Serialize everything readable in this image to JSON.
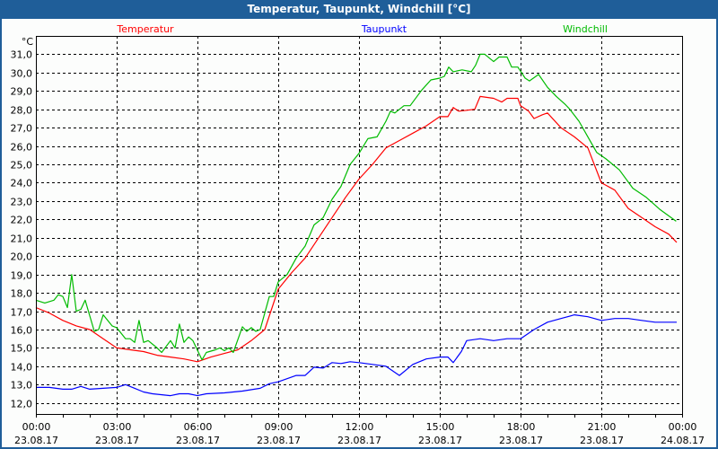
{
  "window": {
    "title": "Temperatur, Taupunkt, Windchill [°C]"
  },
  "chart_data": {
    "type": "line",
    "title": "Temperatur, Taupunkt, Windchill [°C]",
    "ylabel": "°C",
    "xlabel": "",
    "xlim": [
      0,
      24
    ],
    "ylim": [
      11.4,
      32.0
    ],
    "grid": true,
    "legend_position": "top",
    "yticks": [
      12,
      13,
      14,
      15,
      16,
      17,
      18,
      19,
      20,
      21,
      22,
      23,
      24,
      25,
      26,
      27,
      28,
      29,
      30,
      31
    ],
    "ytick_labels": [
      "12,0",
      "13,0",
      "14,0",
      "15,0",
      "16,0",
      "17,0",
      "18,0",
      "19,0",
      "20,0",
      "21,0",
      "22,0",
      "23,0",
      "24,0",
      "25,0",
      "26,0",
      "27,0",
      "28,0",
      "29,0",
      "30,0",
      "31,0"
    ],
    "xticks": [
      {
        "hour": 0,
        "time": "00:00",
        "date": "23.08.17"
      },
      {
        "hour": 3,
        "time": "03:00",
        "date": "23.08.17"
      },
      {
        "hour": 6,
        "time": "06:00",
        "date": "23.08.17"
      },
      {
        "hour": 9,
        "time": "09:00",
        "date": "23.08.17"
      },
      {
        "hour": 12,
        "time": "12:00",
        "date": "23.08.17"
      },
      {
        "hour": 15,
        "time": "15:00",
        "date": "23.08.17"
      },
      {
        "hour": 18,
        "time": "18:00",
        "date": "23.08.17"
      },
      {
        "hour": 21,
        "time": "21:00",
        "date": "23.08.17"
      },
      {
        "hour": 24,
        "time": "00:00",
        "date": "24.08.17"
      }
    ],
    "series": [
      {
        "name": "Temperatur",
        "color": "#ff0000",
        "points": [
          [
            0,
            17.2
          ],
          [
            0.5,
            16.9
          ],
          [
            1,
            16.5
          ],
          [
            1.5,
            16.2
          ],
          [
            2,
            16.0
          ],
          [
            2.5,
            15.5
          ],
          [
            3,
            15.0
          ],
          [
            3.5,
            14.9
          ],
          [
            4,
            14.8
          ],
          [
            4.5,
            14.6
          ],
          [
            5,
            14.5
          ],
          [
            5.5,
            14.4
          ],
          [
            6,
            14.25
          ],
          [
            6.5,
            14.5
          ],
          [
            7,
            14.7
          ],
          [
            7.5,
            14.9
          ],
          [
            8,
            15.4
          ],
          [
            8.5,
            16.0
          ],
          [
            9,
            18.2
          ],
          [
            9.5,
            19.1
          ],
          [
            10,
            19.9
          ],
          [
            10.5,
            21.0
          ],
          [
            11,
            22.1
          ],
          [
            11.5,
            23.2
          ],
          [
            12,
            24.2
          ],
          [
            12.5,
            25.0
          ],
          [
            13,
            25.9
          ],
          [
            13.5,
            26.3
          ],
          [
            14,
            26.7
          ],
          [
            14.5,
            27.1
          ],
          [
            15,
            27.6
          ],
          [
            15.3,
            27.6
          ],
          [
            15.5,
            28.1
          ],
          [
            15.7,
            27.9
          ],
          [
            16,
            27.95
          ],
          [
            16.3,
            28.0
          ],
          [
            16.5,
            28.7
          ],
          [
            17,
            28.6
          ],
          [
            17.3,
            28.4
          ],
          [
            17.5,
            28.6
          ],
          [
            17.9,
            28.6
          ],
          [
            18,
            28.2
          ],
          [
            18.3,
            27.9
          ],
          [
            18.5,
            27.5
          ],
          [
            18.8,
            27.7
          ],
          [
            19,
            27.8
          ],
          [
            19.5,
            27.0
          ],
          [
            20,
            26.5
          ],
          [
            20.5,
            25.9
          ],
          [
            21,
            24.0
          ],
          [
            21.5,
            23.6
          ],
          [
            22,
            22.6
          ],
          [
            22.5,
            22.1
          ],
          [
            23,
            21.6
          ],
          [
            23.5,
            21.2
          ],
          [
            23.8,
            20.75
          ]
        ]
      },
      {
        "name": "Taupunkt",
        "color": "#0000ff",
        "points": [
          [
            0,
            12.85
          ],
          [
            0.5,
            12.85
          ],
          [
            1,
            12.75
          ],
          [
            1.33,
            12.75
          ],
          [
            1.67,
            12.9
          ],
          [
            2,
            12.75
          ],
          [
            2.5,
            12.8
          ],
          [
            3,
            12.85
          ],
          [
            3.33,
            13.0
          ],
          [
            3.67,
            12.8
          ],
          [
            4,
            12.6
          ],
          [
            4.33,
            12.5
          ],
          [
            5,
            12.4
          ],
          [
            5.33,
            12.5
          ],
          [
            5.67,
            12.5
          ],
          [
            6,
            12.4
          ],
          [
            6.33,
            12.5
          ],
          [
            7,
            12.55
          ],
          [
            7.33,
            12.6
          ],
          [
            7.67,
            12.65
          ],
          [
            8.33,
            12.8
          ],
          [
            8.67,
            13.05
          ],
          [
            9,
            13.15
          ],
          [
            9.67,
            13.5
          ],
          [
            10,
            13.5
          ],
          [
            10.33,
            13.95
          ],
          [
            10.67,
            13.9
          ],
          [
            11,
            14.2
          ],
          [
            11.33,
            14.15
          ],
          [
            11.67,
            14.25
          ],
          [
            12,
            14.2
          ],
          [
            12.5,
            14.1
          ],
          [
            13,
            14.0
          ],
          [
            13.5,
            13.5
          ],
          [
            14,
            14.1
          ],
          [
            14.5,
            14.4
          ],
          [
            15,
            14.5
          ],
          [
            15.3,
            14.5
          ],
          [
            15.5,
            14.2
          ],
          [
            15.8,
            14.8
          ],
          [
            16,
            15.4
          ],
          [
            16.5,
            15.5
          ],
          [
            17,
            15.4
          ],
          [
            17.5,
            15.5
          ],
          [
            18,
            15.5
          ],
          [
            18.5,
            16.0
          ],
          [
            19,
            16.4
          ],
          [
            19.5,
            16.6
          ],
          [
            20,
            16.8
          ],
          [
            20.5,
            16.7
          ],
          [
            21,
            16.5
          ],
          [
            21.5,
            16.6
          ],
          [
            22,
            16.6
          ],
          [
            22.5,
            16.5
          ],
          [
            23,
            16.4
          ],
          [
            23.8,
            16.4
          ]
        ]
      },
      {
        "name": "Windchill",
        "color": "#00bb00",
        "points": [
          [
            0,
            17.6
          ],
          [
            0.33,
            17.45
          ],
          [
            0.67,
            17.6
          ],
          [
            0.83,
            17.9
          ],
          [
            1,
            17.8
          ],
          [
            1.17,
            17.2
          ],
          [
            1.33,
            19.0
          ],
          [
            1.5,
            17.0
          ],
          [
            1.67,
            17.1
          ],
          [
            1.83,
            17.6
          ],
          [
            2.17,
            15.9
          ],
          [
            2.33,
            16.0
          ],
          [
            2.5,
            16.8
          ],
          [
            2.83,
            16.2
          ],
          [
            3,
            16.1
          ],
          [
            3.33,
            15.5
          ],
          [
            3.5,
            15.5
          ],
          [
            3.67,
            15.3
          ],
          [
            3.83,
            16.5
          ],
          [
            4,
            15.3
          ],
          [
            4.17,
            15.4
          ],
          [
            4.5,
            15.0
          ],
          [
            4.67,
            14.75
          ],
          [
            5,
            15.4
          ],
          [
            5.17,
            15.0
          ],
          [
            5.33,
            16.3
          ],
          [
            5.5,
            15.3
          ],
          [
            5.67,
            15.6
          ],
          [
            5.83,
            15.4
          ],
          [
            6.17,
            14.35
          ],
          [
            6.33,
            14.75
          ],
          [
            6.67,
            14.9
          ],
          [
            6.83,
            15.0
          ],
          [
            7,
            14.85
          ],
          [
            7.17,
            15.0
          ],
          [
            7.33,
            14.75
          ],
          [
            7.67,
            16.15
          ],
          [
            7.83,
            15.9
          ],
          [
            8,
            16.1
          ],
          [
            8.17,
            15.9
          ],
          [
            8.33,
            16.0
          ],
          [
            8.67,
            17.8
          ],
          [
            8.83,
            17.8
          ],
          [
            9,
            18.6
          ],
          [
            9.33,
            19.0
          ],
          [
            9.67,
            19.9
          ],
          [
            10,
            20.55
          ],
          [
            10.33,
            21.7
          ],
          [
            10.67,
            22.1
          ],
          [
            11,
            23.1
          ],
          [
            11.33,
            23.8
          ],
          [
            11.67,
            25.0
          ],
          [
            12,
            25.6
          ],
          [
            12.33,
            26.4
          ],
          [
            12.67,
            26.5
          ],
          [
            13,
            27.35
          ],
          [
            13.17,
            27.9
          ],
          [
            13.33,
            27.8
          ],
          [
            13.67,
            28.2
          ],
          [
            13.9,
            28.2
          ],
          [
            14.33,
            29.05
          ],
          [
            14.67,
            29.6
          ],
          [
            15,
            29.7
          ],
          [
            15.17,
            29.8
          ],
          [
            15.33,
            30.3
          ],
          [
            15.5,
            30.05
          ],
          [
            15.83,
            30.15
          ],
          [
            16.17,
            30.05
          ],
          [
            16.33,
            30.4
          ],
          [
            16.5,
            31.0
          ],
          [
            16.67,
            31.0
          ],
          [
            17,
            30.6
          ],
          [
            17.2,
            30.85
          ],
          [
            17.5,
            30.85
          ],
          [
            17.67,
            30.3
          ],
          [
            17.9,
            30.3
          ],
          [
            18.17,
            29.7
          ],
          [
            18.33,
            29.55
          ],
          [
            18.67,
            29.9
          ],
          [
            19,
            29.2
          ],
          [
            19.33,
            28.7
          ],
          [
            19.67,
            28.25
          ],
          [
            19.83,
            28.0
          ],
          [
            20.17,
            27.35
          ],
          [
            20.5,
            26.5
          ],
          [
            20.83,
            25.65
          ],
          [
            21.17,
            25.3
          ],
          [
            21.67,
            24.7
          ],
          [
            22.17,
            23.7
          ],
          [
            22.67,
            23.2
          ],
          [
            23.17,
            22.55
          ],
          [
            23.78,
            21.9
          ]
        ]
      }
    ]
  }
}
